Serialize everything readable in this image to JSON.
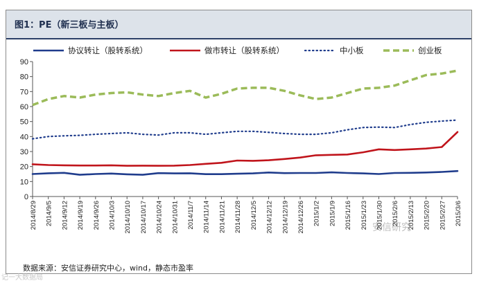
{
  "figure": {
    "title": "图1：PE（新三板与主板）",
    "source": "数据来源：安信证券研究中心，wind，静态市盈率",
    "watermark": "安信研究",
    "watermark2": "记一大数据局"
  },
  "chart_data": {
    "type": "line",
    "title": "",
    "xlabel": "",
    "ylabel": "",
    "ylim": [
      0,
      90
    ],
    "yticks": [
      0,
      10,
      20,
      30,
      40,
      50,
      60,
      70,
      80,
      90
    ],
    "grid": false,
    "legend_position": "top",
    "categories": [
      "2014/8/29",
      "2014/9/5",
      "2014/9/12",
      "2014/9/19",
      "2014/9/26",
      "2014/10/3",
      "2014/10/10",
      "2014/10/17",
      "2014/10/24",
      "2014/10/31",
      "2014/11/7",
      "2014/11/14",
      "2014/11/21",
      "2014/11/28",
      "2014/12/5",
      "2014/12/12",
      "2014/12/19",
      "2014/12/26",
      "2015/1/2",
      "2015/1/9",
      "2015/1/16",
      "2015/1/23",
      "2015/1/30",
      "2015/2/6",
      "2015/2/13",
      "2015/2/20",
      "2015/2/27",
      "2015/3/6"
    ],
    "series": [
      {
        "name": "协议转让（股转系统）",
        "color": "#1f3c8c",
        "style": "solid",
        "values": [
          15.0,
          15.5,
          15.8,
          14.5,
          15.0,
          15.3,
          14.8,
          14.5,
          15.6,
          15.4,
          15.5,
          14.9,
          14.9,
          15.2,
          15.4,
          16.0,
          15.6,
          15.7,
          15.7,
          16.1,
          15.7,
          15.4,
          15.0,
          15.7,
          15.8,
          16.0,
          16.4,
          17.0
        ]
      },
      {
        "name": "做市转让（股转系统）",
        "color": "#c0141b",
        "style": "solid",
        "values": [
          21.5,
          21.0,
          20.8,
          20.7,
          20.7,
          20.8,
          20.5,
          20.6,
          20.5,
          20.6,
          21.0,
          21.8,
          22.5,
          24.0,
          23.8,
          24.2,
          25.0,
          26.0,
          27.5,
          27.8,
          28.0,
          29.5,
          31.5,
          31.0,
          31.5,
          32.0,
          33.0,
          43.0
        ]
      },
      {
        "name": "中小板",
        "color": "#1f3c8c",
        "style": "dotted",
        "values": [
          38.5,
          40.0,
          40.5,
          40.8,
          41.5,
          42.0,
          42.5,
          41.5,
          41.0,
          42.5,
          42.5,
          41.5,
          42.5,
          43.5,
          43.5,
          42.8,
          42.0,
          41.5,
          41.5,
          42.5,
          44.5,
          46.0,
          46.3,
          46.0,
          48.0,
          49.5,
          50.3,
          51.0
        ]
      },
      {
        "name": "创业板",
        "color": "#9bbb59",
        "style": "dashed",
        "values": [
          61.0,
          65.0,
          67.0,
          66.0,
          68.0,
          69.0,
          69.5,
          68.0,
          67.0,
          69.0,
          70.5,
          66.0,
          68.5,
          72.0,
          72.5,
          72.5,
          70.5,
          67.5,
          65.0,
          66.0,
          69.0,
          72.0,
          72.5,
          74.0,
          77.5,
          81.0,
          82.0,
          84.0
        ]
      }
    ]
  }
}
